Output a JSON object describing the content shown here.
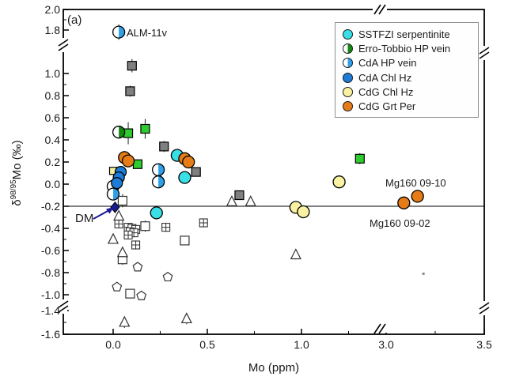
{
  "figure": {
    "panel_label": "(a)",
    "xlabel": "Mo (ppm)",
    "ylabel_prefix": "δ",
    "ylabel_sup": "98/95",
    "ylabel_suffix": "Mo (‰)"
  },
  "legend": {
    "items": [
      {
        "label": "SSTFZI serpentinite",
        "swatch": "circle",
        "color": "#38dfe6"
      },
      {
        "label": "Erro-Tobbio HP vein",
        "swatch": "half-circle",
        "color": "#128a12"
      },
      {
        "label": "CdA HP vein",
        "swatch": "half-circle",
        "color": "#2f9fe8"
      },
      {
        "label": "CdA Chl Hz",
        "swatch": "circle",
        "color": "#1d7cd8"
      },
      {
        "label": "CdG Chl Hz",
        "swatch": "circle",
        "color": "#faf2a2"
      },
      {
        "label": "CdG Grt Per",
        "swatch": "circle",
        "color": "#e67c17"
      }
    ]
  },
  "annotations": {
    "alm": "ALM-11v",
    "dm": "DM",
    "mg_top": "Mg160 09-10",
    "mg_bottom": "Mg160 09-02"
  },
  "chart_data": {
    "type": "scatter",
    "title": "(a)",
    "xlabel": "Mo (ppm)",
    "ylabel": "δ98/95Mo (‰)",
    "grid": false,
    "legend_position": "top-right",
    "x_axis": {
      "range_left_segment": [
        -0.27,
        1.41
      ],
      "range_right_segment": [
        3.0,
        3.5
      ],
      "break_between": [
        1.41,
        3.0
      ],
      "major_ticks": [
        {
          "v": 0.0,
          "label": "0.0"
        },
        {
          "v": 0.5,
          "label": "0.5"
        },
        {
          "v": 1.0,
          "label": "1.0"
        },
        {
          "v": 3.0,
          "label": "3.0"
        },
        {
          "v": 3.5,
          "label": "3.5"
        }
      ],
      "minor_ticks": [
        0.25,
        0.75,
        1.25,
        3.25
      ]
    },
    "y_axis": {
      "range_top_segment": [
        1.8,
        2.0
      ],
      "range_main_segment": [
        -1.05,
        1.15
      ],
      "range_bottom_segment": [
        -1.6,
        -1.4
      ],
      "breaks": [
        [
          1.15,
          1.8
        ],
        [
          -1.4,
          -1.05
        ]
      ],
      "major_ticks": [
        {
          "v": 2.0,
          "label": "2.0"
        },
        {
          "v": 1.8,
          "label": "1.8"
        },
        {
          "v": 1.0,
          "label": "1.0"
        },
        {
          "v": 0.8,
          "label": "0.8"
        },
        {
          "v": 0.6,
          "label": "0.6"
        },
        {
          "v": 0.4,
          "label": "0.4"
        },
        {
          "v": 0.2,
          "label": "0.2"
        },
        {
          "v": 0.0,
          "label": "0.0"
        },
        {
          "v": -0.2,
          "label": "-0.2"
        },
        {
          "v": -0.4,
          "label": "-0.4"
        },
        {
          "v": -0.6,
          "label": "-0.6"
        },
        {
          "v": -0.8,
          "label": "-0.8"
        },
        {
          "v": -1.0,
          "label": "-1.0"
        },
        {
          "v": -1.4,
          "label": "-1.4"
        },
        {
          "v": -1.6,
          "label": "-1.6"
        }
      ],
      "minor_ticks": [
        1.9,
        0.9,
        0.7,
        0.5,
        0.3,
        0.1,
        -0.1,
        -0.3,
        -0.5,
        -0.7,
        -0.9,
        -1.5
      ]
    },
    "reference_line_y": -0.2,
    "series": [
      {
        "name": "literature-gray-squares",
        "marker": "square",
        "color": "#7f7f7f",
        "size": 5.5,
        "points": [
          [
            0.1,
            1.07,
            0.06
          ],
          [
            0.09,
            0.84,
            0.05
          ],
          [
            0.27,
            0.34,
            0.05
          ],
          [
            0.44,
            0.11,
            0.04
          ],
          [
            0.67,
            -0.1,
            0.04
          ]
        ]
      },
      {
        "name": "literature-yellow-square",
        "marker": "square",
        "color": "#f7ef9e",
        "size": 4.5,
        "points": [
          [
            0.0,
            0.12,
            0.03
          ]
        ]
      },
      {
        "name": "literature-open-squares",
        "marker": "open-square",
        "color": "#ffffff",
        "size": 5.5,
        "points": [
          [
            0.05,
            -0.15,
            0.06
          ],
          [
            0.17,
            -0.38,
            0.05
          ],
          [
            0.38,
            -0.51,
            0.04
          ],
          [
            0.05,
            -0.68,
            0.05
          ],
          [
            0.09,
            -0.99,
            0.04
          ]
        ]
      },
      {
        "name": "literature-crossed-squares",
        "marker": "crossed-square",
        "color": "#ffffff",
        "size": 5,
        "points": [
          [
            0.03,
            -0.36,
            0.04
          ],
          [
            0.08,
            -0.39,
            0.04
          ],
          [
            0.1,
            -0.4,
            0.04
          ],
          [
            0.12,
            -0.41,
            0.04
          ],
          [
            0.09,
            -0.43,
            0.04
          ],
          [
            0.11,
            -0.44,
            0.04
          ],
          [
            0.08,
            -0.46,
            0.04
          ],
          [
            0.12,
            -0.55,
            0.04
          ],
          [
            0.28,
            -0.39,
            0.04
          ],
          [
            0.48,
            -0.35,
            0.04
          ]
        ]
      },
      {
        "name": "literature-open-triangles",
        "marker": "triangle",
        "color": "#ffffff",
        "size": 6,
        "points": [
          [
            0.03,
            -0.29,
            0.04
          ],
          [
            0.0,
            -0.5,
            0.04
          ],
          [
            0.05,
            -0.62,
            0.04
          ],
          [
            0.63,
            -0.16,
            0.04
          ],
          [
            0.73,
            -0.16,
            0.04
          ],
          [
            0.97,
            -0.64,
            0.04
          ],
          [
            0.06,
            -1.5,
            0.05
          ],
          [
            0.39,
            -1.47,
            0.05
          ]
        ]
      },
      {
        "name": "literature-pentagons",
        "marker": "pentagon",
        "color": "#ffffff",
        "size": 6,
        "points": [
          [
            0.13,
            -0.75,
            0.03
          ],
          [
            0.29,
            -0.84,
            0.03
          ],
          [
            0.02,
            -0.93,
            0.03
          ],
          [
            0.15,
            -1.01,
            0.03
          ]
        ]
      },
      {
        "name": "literature-green-squares",
        "marker": "square",
        "color": "#2ecc2e",
        "size": 5.5,
        "points": [
          [
            0.08,
            0.46,
            0.1
          ],
          [
            0.17,
            0.5,
            0.09
          ],
          [
            0.13,
            0.18,
            0.04
          ],
          [
            1.31,
            0.23,
            0.05
          ]
        ]
      },
      {
        "name": "literature-gray-dot",
        "marker": "dot",
        "color": "#888888",
        "size": 1.5,
        "points": [
          [
            3.19,
            -0.81
          ]
        ]
      },
      {
        "name": "erro-tobbio-hp-vein",
        "label": "Erro-Tobbio HP vein",
        "marker": "half-circle",
        "color": "#128a12",
        "size": 7.5,
        "points": [
          [
            0.03,
            0.47,
            0.04
          ]
        ]
      },
      {
        "name": "cda-hp-vein",
        "label": "CdA HP vein",
        "marker": "half-circle",
        "color": "#2f9fe8",
        "size": 7.5,
        "points": [
          [
            0.03,
            1.78,
            0.07
          ],
          [
            0.24,
            0.13,
            0.03
          ],
          [
            0.24,
            0.02,
            0.03
          ],
          [
            0.0,
            -0.02,
            0.03
          ],
          [
            0.0,
            -0.09,
            0.03
          ]
        ]
      },
      {
        "name": "cda-chl-hz",
        "label": "CdA Chl Hz",
        "marker": "circle",
        "color": "#1d7cd8",
        "size": 7,
        "points": [
          [
            0.04,
            0.11,
            0.03
          ],
          [
            0.03,
            0.06,
            0.03
          ],
          [
            0.02,
            0.01,
            0.03
          ]
        ]
      },
      {
        "name": "sstfzi-serpentinite",
        "label": "SSTFZI serpentinite",
        "marker": "circle",
        "color": "#38dfe6",
        "size": 7.5,
        "points": [
          [
            0.34,
            0.26,
            0.03
          ],
          [
            0.38,
            0.06,
            0.03
          ],
          [
            0.23,
            -0.26,
            0.04
          ]
        ]
      },
      {
        "name": "cdg-chl-hz",
        "label": "CdG Chl Hz",
        "marker": "circle",
        "color": "#faf2a2",
        "size": 7.5,
        "points": [
          [
            1.2,
            0.02,
            0.04
          ],
          [
            0.97,
            -0.21,
            0.04
          ],
          [
            1.01,
            -0.25,
            0.04
          ]
        ]
      },
      {
        "name": "cdg-grt-per",
        "label": "CdG Grt Per",
        "marker": "circle",
        "color": "#e67c17",
        "size": 7.5,
        "points": [
          [
            0.06,
            0.24,
            0.06
          ],
          [
            0.08,
            0.21,
            0.04
          ],
          [
            0.38,
            0.23,
            0.04
          ],
          [
            0.4,
            0.2,
            0.03
          ],
          [
            3.09,
            -0.17,
            0.04
          ],
          [
            3.16,
            -0.11,
            0.04
          ]
        ]
      },
      {
        "name": "dm-depleted-mantle",
        "marker": "diamond",
        "color": "#1a1a90",
        "size": 6,
        "points": [
          [
            0.01,
            -0.21,
            0.05
          ]
        ]
      }
    ],
    "labeled_points": [
      {
        "series": "cda-hp-vein",
        "x": 0.03,
        "y": 1.78,
        "label": "ALM-11v"
      },
      {
        "series": "dm-depleted-mantle",
        "x": 0.01,
        "y": -0.21,
        "label": "DM"
      },
      {
        "series": "cdg-grt-per",
        "x": 3.16,
        "y": -0.11,
        "label": "Mg160 09-10"
      },
      {
        "series": "cdg-grt-per",
        "x": 3.09,
        "y": -0.17,
        "label": "Mg160 09-02"
      }
    ]
  }
}
